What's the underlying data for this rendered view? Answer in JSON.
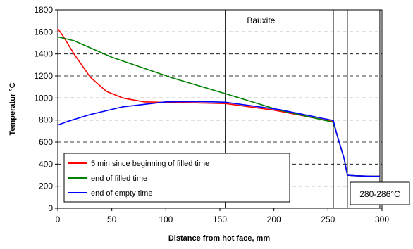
{
  "chart_data": {
    "type": "line",
    "title": "",
    "xlabel": "Distance from hot face, mm",
    "ylabel": "Temperatur   °C",
    "xlim": [
      0,
      300
    ],
    "ylim": [
      0,
      1800
    ],
    "xticks": [
      0,
      50,
      100,
      150,
      200,
      250,
      300
    ],
    "yticks": [
      0,
      200,
      400,
      600,
      800,
      1000,
      1200,
      1400,
      1600,
      1800
    ],
    "grid": "horizontal dashed",
    "legend_position": "bottom-left",
    "region_lines": [
      155,
      255,
      268,
      298
    ],
    "annotations": {
      "bauxite": {
        "text": "Bauxite",
        "x": 175,
        "y": 1680
      },
      "range": {
        "text": "280-286°C"
      }
    },
    "series": [
      {
        "name": "5 min since beginning of filled time",
        "color": "#ff0000",
        "x": [
          0,
          5,
          15,
          30,
          45,
          60,
          80,
          100,
          120,
          155,
          200,
          255,
          258,
          265,
          268,
          275,
          290,
          298
        ],
        "y": [
          1630,
          1560,
          1400,
          1190,
          1060,
          1000,
          965,
          960,
          958,
          950,
          890,
          785,
          680,
          450,
          300,
          295,
          290,
          290
        ]
      },
      {
        "name": "end of filled time",
        "color": "#008000",
        "x": [
          0,
          15,
          50,
          105,
          155,
          205,
          255,
          258,
          265,
          268,
          275,
          290,
          298
        ],
        "y": [
          1555,
          1520,
          1370,
          1185,
          1040,
          890,
          780,
          680,
          450,
          300,
          295,
          290,
          290
        ]
      },
      {
        "name": "end of empty time",
        "color": "#0000ff",
        "x": [
          0,
          10,
          30,
          60,
          100,
          130,
          155,
          205,
          255,
          258,
          265,
          268,
          275,
          290,
          298
        ],
        "y": [
          755,
          790,
          850,
          920,
          965,
          968,
          962,
          895,
          795,
          680,
          450,
          300,
          295,
          290,
          290
        ]
      }
    ]
  }
}
